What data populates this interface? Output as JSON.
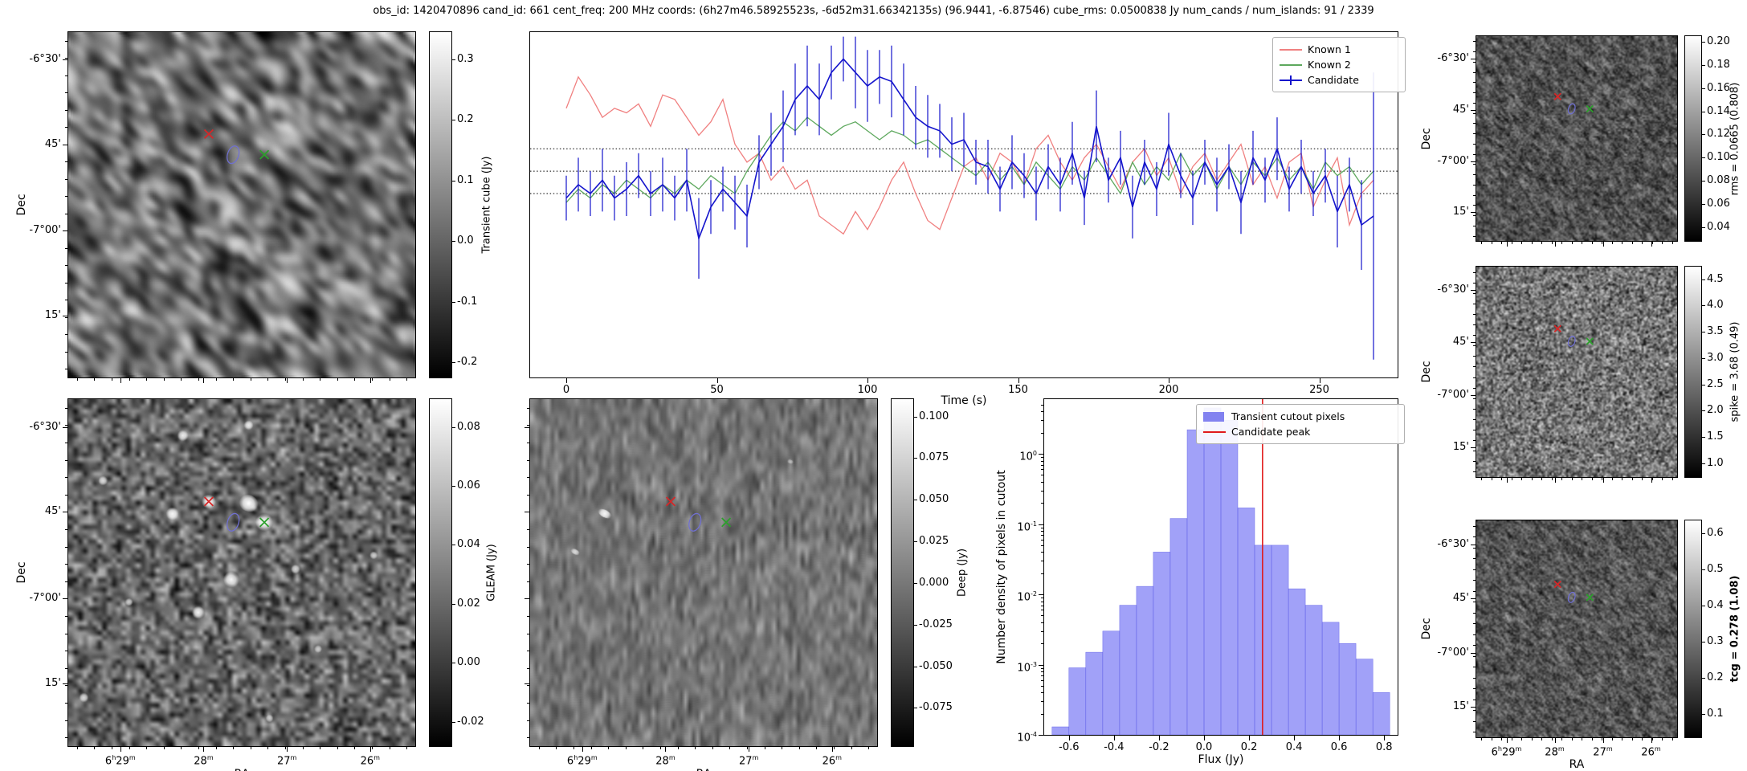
{
  "title": "obs_id: 1420470896 cand_id: 661 cent_freq: 200 MHz coords: (6h27m46.58925523s, -6d52m31.66342135s) (96.9441, -6.87546) cube_rms: 0.0500838 Jy num_cands / num_islands: 91 / 2339",
  "markers": {
    "red_x": {
      "fx": 0.405,
      "fy": 0.295,
      "color": "#d62728"
    },
    "green_x": {
      "fx": 0.565,
      "fy": 0.355,
      "color": "#2ca02c"
    },
    "ellipse": {
      "fx": 0.475,
      "fy": 0.355,
      "color": "#7070d0"
    }
  },
  "panels": {
    "transient": {
      "ylabel": "Dec",
      "dec_ticks": [
        "-6°30'",
        "45'",
        "-7°00'",
        "15'"
      ],
      "cb_label": "Transient cube (Jy)",
      "cb_ticks": [
        "0.3",
        "0.2",
        "0.1",
        "0.0",
        "-0.1",
        "-0.2"
      ]
    },
    "gleam": {
      "ylabel": "Dec",
      "xlabel": "RA",
      "dec_ticks": [
        "-6°30'",
        "45'",
        "-7°00'",
        "15'"
      ],
      "ra_ticks": [
        "6h29m",
        "28m",
        "27m",
        "26m"
      ],
      "cb_label": "GLEAM (Jy)",
      "cb_ticks": [
        "0.08",
        "0.06",
        "0.04",
        "0.02",
        "0.00",
        "-0.02"
      ]
    },
    "deep": {
      "xlabel": "RA",
      "ra_ticks": [
        "6h29m",
        "28m",
        "27m",
        "26m"
      ],
      "cb_label": "Deep (Jy)",
      "cb_ticks": [
        "0.100",
        "0.075",
        "0.050",
        "0.025",
        "0.000",
        "-0.025",
        "-0.050",
        "-0.075"
      ]
    },
    "rms": {
      "ylabel": "Dec",
      "dec_ticks": [
        "-6°30'",
        "45'",
        "-7°00'",
        "15'"
      ],
      "cb_label": "rms = 0.0665 (0.808)",
      "cb_ticks": [
        "0.20",
        "0.18",
        "0.16",
        "0.14",
        "0.12",
        "0.10",
        "0.08",
        "0.06",
        "0.04"
      ]
    },
    "spike": {
      "ylabel": "Dec",
      "dec_ticks": [
        "-6°30'",
        "45'",
        "-7°00'",
        "15'"
      ],
      "cb_label": "spike = 3.68 (0.49)",
      "cb_ticks": [
        "4.5",
        "4.0",
        "3.5",
        "3.0",
        "2.5",
        "2.0",
        "1.5",
        "1.0"
      ]
    },
    "tcg": {
      "ylabel": "Dec",
      "xlabel": "RA",
      "dec_ticks": [
        "-6°30'",
        "45'",
        "-7°00'",
        "15'"
      ],
      "ra_ticks": [
        "6h29m",
        "28m",
        "27m",
        "26m"
      ],
      "cb_label": "tcg = 0.278 (1.08)",
      "cb_ticks": [
        "0.6",
        "0.5",
        "0.4",
        "0.3",
        "0.2",
        "0.1"
      ]
    }
  },
  "chart_data": [
    {
      "type": "line",
      "name": "lightcurve",
      "xlabel": "Time (s)",
      "xticks": [
        0,
        50,
        100,
        150,
        200,
        250
      ],
      "xlim": [
        -12,
        276
      ],
      "ylim": [
        -0.46,
        0.31
      ],
      "hlines": [
        0.05,
        0.0,
        -0.05
      ],
      "legend_position": "upper right",
      "x": [
        0,
        4,
        8,
        12,
        16,
        20,
        24,
        28,
        32,
        36,
        40,
        44,
        48,
        52,
        56,
        60,
        64,
        68,
        72,
        76,
        80,
        84,
        88,
        92,
        96,
        100,
        104,
        108,
        112,
        116,
        120,
        124,
        128,
        132,
        136,
        140,
        144,
        148,
        152,
        156,
        160,
        164,
        168,
        172,
        176,
        180,
        184,
        188,
        192,
        196,
        200,
        204,
        208,
        212,
        216,
        220,
        224,
        228,
        232,
        236,
        240,
        244,
        248,
        252,
        256,
        260,
        264,
        268
      ],
      "series": [
        {
          "name": "Known 1",
          "color": "#f08080",
          "y": [
            0.14,
            0.21,
            0.17,
            0.12,
            0.14,
            0.13,
            0.15,
            0.1,
            0.17,
            0.16,
            0.12,
            0.08,
            0.11,
            0.16,
            0.06,
            0.02,
            0.04,
            -0.02,
            0.01,
            -0.04,
            -0.02,
            -0.1,
            -0.12,
            -0.14,
            -0.09,
            -0.13,
            -0.08,
            -0.02,
            0.02,
            -0.05,
            -0.11,
            -0.13,
            -0.06,
            0.01,
            0.03,
            -0.02,
            0.04,
            0.02,
            -0.03,
            0.05,
            0.08,
            0.02,
            -0.02,
            0.03,
            0.06,
            0.01,
            -0.04,
            0.02,
            0.05,
            -0.01,
            0.03,
            -0.05,
            0.01,
            0.04,
            -0.02,
            0.02,
            0.06,
            -0.03,
            0.01,
            -0.06,
            0.02,
            0.04,
            -0.08,
            -0.02,
            0.03,
            -0.12,
            -0.05,
            -0.02
          ]
        },
        {
          "name": "Known 2",
          "color": "#5da85d",
          "y": [
            -0.07,
            -0.04,
            -0.06,
            -0.03,
            -0.05,
            -0.02,
            -0.04,
            -0.06,
            -0.03,
            -0.05,
            -0.02,
            -0.04,
            -0.01,
            -0.03,
            -0.05,
            0.0,
            0.04,
            0.08,
            0.11,
            0.09,
            0.12,
            0.1,
            0.08,
            0.1,
            0.11,
            0.09,
            0.07,
            0.09,
            0.08,
            0.06,
            0.07,
            0.05,
            0.03,
            0.01,
            -0.01,
            0.02,
            -0.02,
            0.01,
            -0.03,
            0.02,
            -0.01,
            -0.04,
            0.01,
            -0.02,
            0.03,
            -0.01,
            -0.05,
            0.02,
            -0.03,
            0.01,
            -0.02,
            0.04,
            -0.01,
            0.02,
            -0.04,
            0.01,
            -0.03,
            0.02,
            -0.01,
            0.03,
            -0.02,
            0.01,
            -0.04,
            0.02,
            -0.01,
            0.01,
            -0.03,
            0.0
          ]
        },
        {
          "name": "Candidate",
          "color": "#1414cc",
          "y": [
            -0.06,
            -0.03,
            -0.05,
            -0.02,
            -0.06,
            -0.04,
            -0.01,
            -0.05,
            -0.03,
            -0.06,
            -0.02,
            -0.15,
            -0.08,
            -0.04,
            -0.07,
            -0.1,
            0.02,
            0.06,
            0.1,
            0.16,
            0.19,
            0.16,
            0.22,
            0.25,
            0.22,
            0.19,
            0.21,
            0.2,
            0.16,
            0.12,
            0.1,
            0.09,
            0.06,
            0.07,
            0.02,
            0.01,
            -0.04,
            0.02,
            -0.01,
            -0.05,
            0.01,
            -0.03,
            0.04,
            -0.06,
            0.1,
            -0.02,
            0.03,
            -0.08,
            0.02,
            -0.04,
            0.06,
            -0.01,
            -0.06,
            0.02,
            -0.03,
            0.01,
            -0.07,
            0.03,
            -0.02,
            0.05,
            -0.04,
            0.01,
            -0.05,
            -0.01,
            -0.09,
            -0.03,
            -0.12,
            -0.1
          ],
          "yerr": [
            0.05,
            0.06,
            0.05,
            0.07,
            0.05,
            0.06,
            0.05,
            0.05,
            0.06,
            0.05,
            0.07,
            0.09,
            0.06,
            0.05,
            0.06,
            0.07,
            0.06,
            0.07,
            0.08,
            0.08,
            0.09,
            0.08,
            0.06,
            0.05,
            0.08,
            0.08,
            0.06,
            0.08,
            0.08,
            0.07,
            0.07,
            0.06,
            0.06,
            0.06,
            0.05,
            0.06,
            0.05,
            0.06,
            0.05,
            0.06,
            0.05,
            0.06,
            0.07,
            0.06,
            0.08,
            0.05,
            0.06,
            0.07,
            0.05,
            0.06,
            0.07,
            0.05,
            0.06,
            0.05,
            0.06,
            0.05,
            0.07,
            0.06,
            0.05,
            0.07,
            0.05,
            0.06,
            0.05,
            0.06,
            0.08,
            0.06,
            0.1,
            0.32
          ]
        }
      ]
    },
    {
      "type": "bar",
      "name": "flux-histogram",
      "xlabel": "Flux (Jy)",
      "ylabel": "Number density of pixels in cutout",
      "yscale": "log",
      "xlim": [
        -0.71,
        0.86
      ],
      "ylim": [
        0.0001,
        6
      ],
      "bin_start": -0.675,
      "bin_width": 0.075,
      "densities": [
        0.00013,
        0.0009,
        0.0015,
        0.003,
        0.007,
        0.013,
        0.04,
        0.12,
        2.2,
        4.5,
        3.0,
        0.17,
        0.05,
        0.05,
        0.012,
        0.007,
        0.004,
        0.002,
        0.0012,
        0.0004
      ],
      "xticks": [
        -0.6,
        -0.4,
        -0.2,
        0.0,
        0.2,
        0.4,
        0.6,
        0.8
      ],
      "yticks": [
        {
          "v": 0.0001,
          "label": "10^-4"
        },
        {
          "v": 0.001,
          "label": "10^-3"
        },
        {
          "v": 0.01,
          "label": "10^-2"
        },
        {
          "v": 0.1,
          "label": "10^-1"
        },
        {
          "v": 1,
          "label": "10^0"
        }
      ],
      "peak_flux": 0.26,
      "legend": [
        {
          "label": "Transient cutout pixels",
          "color": "#8282f0",
          "type": "patch"
        },
        {
          "label": "Candidate peak",
          "color": "#e01b1b",
          "type": "line"
        }
      ]
    }
  ]
}
